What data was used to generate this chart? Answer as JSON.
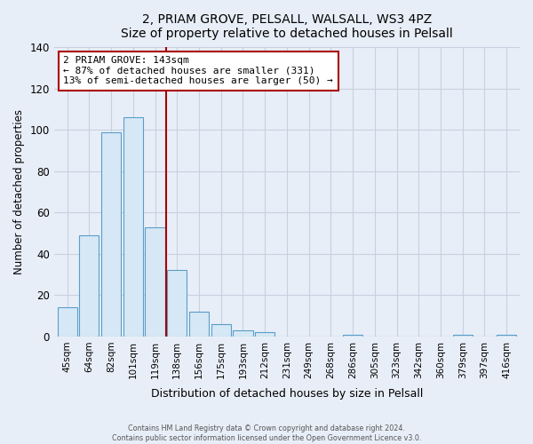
{
  "title": "2, PRIAM GROVE, PELSALL, WALSALL, WS3 4PZ",
  "subtitle": "Size of property relative to detached houses in Pelsall",
  "xlabel": "Distribution of detached houses by size in Pelsall",
  "ylabel": "Number of detached properties",
  "bar_labels": [
    "45sqm",
    "64sqm",
    "82sqm",
    "101sqm",
    "119sqm",
    "138sqm",
    "156sqm",
    "175sqm",
    "193sqm",
    "212sqm",
    "231sqm",
    "249sqm",
    "268sqm",
    "286sqm",
    "305sqm",
    "323sqm",
    "342sqm",
    "360sqm",
    "379sqm",
    "397sqm",
    "416sqm"
  ],
  "bar_values": [
    14,
    49,
    99,
    106,
    53,
    32,
    12,
    6,
    3,
    2,
    0,
    0,
    0,
    1,
    0,
    0,
    0,
    0,
    1,
    0,
    1
  ],
  "bar_color": "#d6e8f5",
  "bar_edge_color": "#5a9ec9",
  "ylim": [
    0,
    140
  ],
  "yticks": [
    0,
    20,
    40,
    60,
    80,
    100,
    120,
    140
  ],
  "vline_x": 4.5,
  "vline_color": "#aa0000",
  "annotation_text": "2 PRIAM GROVE: 143sqm\n← 87% of detached houses are smaller (331)\n13% of semi-detached houses are larger (50) →",
  "annotation_box_color": "#ffffff",
  "annotation_box_edge": "#aa0000",
  "footer_line1": "Contains HM Land Registry data © Crown copyright and database right 2024.",
  "footer_line2": "Contains public sector information licensed under the Open Government Licence v3.0.",
  "background_color": "#e8eef8",
  "grid_color": "#c8d0e0",
  "title_fontsize": 10,
  "subtitle_fontsize": 9
}
